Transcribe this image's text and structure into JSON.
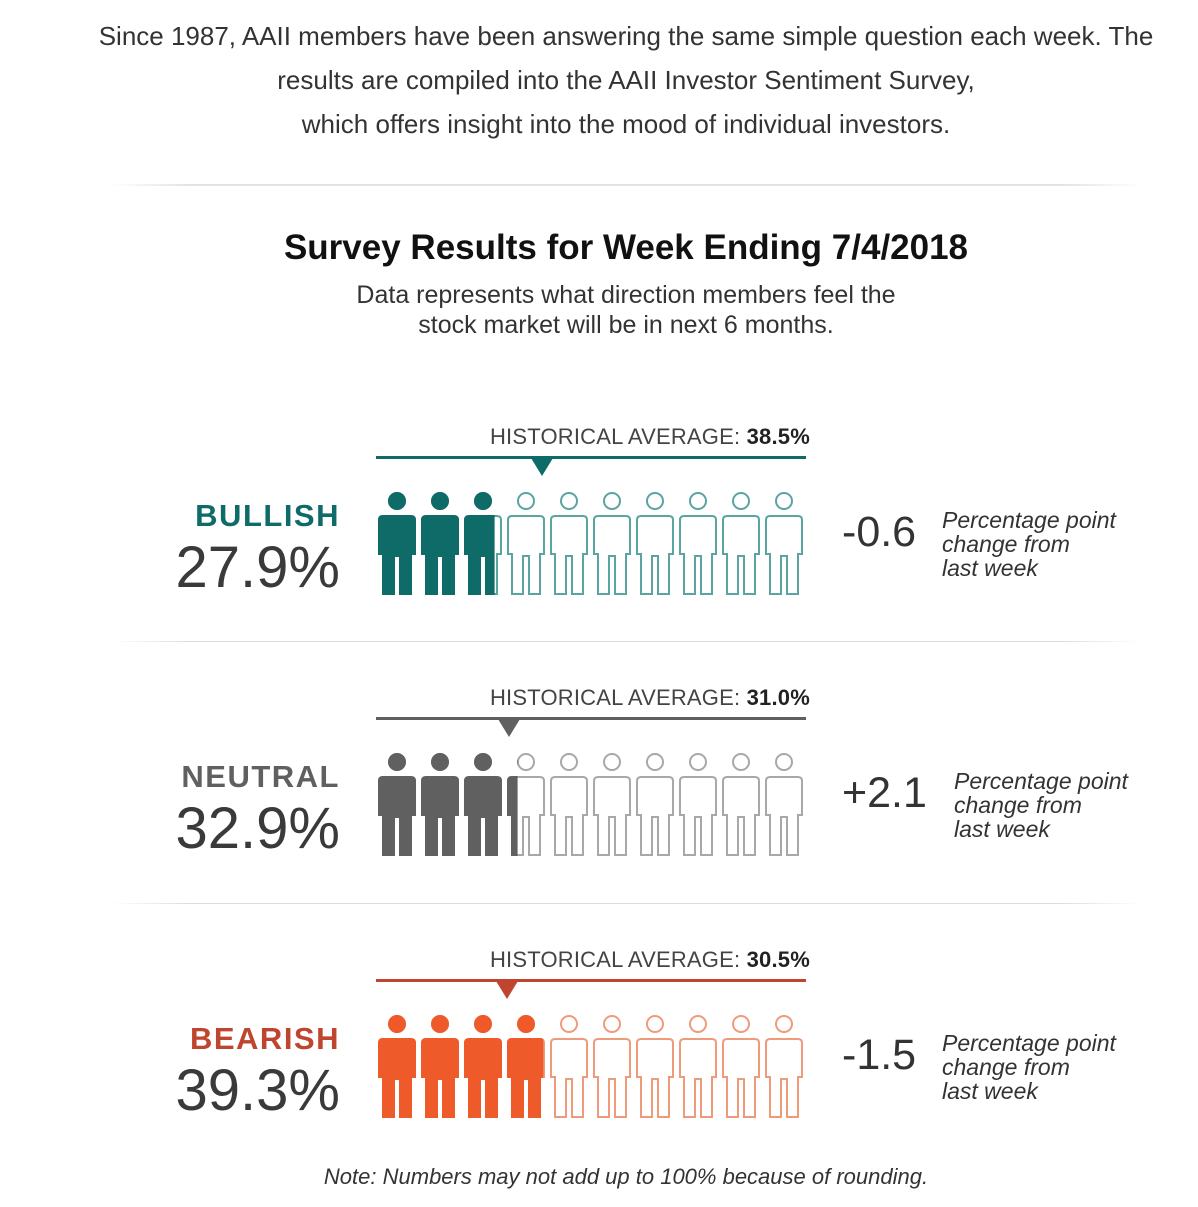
{
  "intro": {
    "line1": "Since 1987, AAII members have been answering the same simple question each week. The",
    "line2": "results are compiled into the AAII Investor Sentiment Survey,",
    "line3": "which offers insight into the mood of individual investors."
  },
  "header": {
    "title": "Survey Results for Week Ending 7/4/2018",
    "subtitle_line1": "Data represents what direction members feel the",
    "subtitle_line2": "stock market will be in next 6 months."
  },
  "hist_label_prefix": "HISTORICAL AVERAGE: ",
  "change_desc": {
    "line1": "Percentage point",
    "line2": "change from",
    "line3": "last week"
  },
  "note": "Note: Numbers may not add up to 100% because of rounding.",
  "colors": {
    "bullish": "#0e6b68",
    "bullish_outline": "#5aa4a1",
    "neutral": "#606060",
    "neutral_outline": "#a8a8a8",
    "bearish": "#ee5a2a",
    "bearish_outline": "#f09a7c",
    "bearish_label": "#c0452e"
  },
  "chart_data": {
    "type": "pictogram",
    "title": "Survey Results for Week Ending 7/4/2018",
    "icons_per_row": 10,
    "icon_value": 10,
    "series": [
      {
        "name": "BULLISH",
        "value_label": "27.9%",
        "value": 27.9,
        "historical_average_label": "38.5%",
        "historical_average": 38.5,
        "change_label": "-0.6",
        "change": -0.6
      },
      {
        "name": "NEUTRAL",
        "value_label": "32.9%",
        "value": 32.9,
        "historical_average_label": "31.0%",
        "historical_average": 31.0,
        "change_label": "+2.1",
        "change": 2.1
      },
      {
        "name": "BEARISH",
        "value_label": "39.3%",
        "value": 39.3,
        "historical_average_label": "30.5%",
        "historical_average": 30.5,
        "change_label": "-1.5",
        "change": -1.5
      }
    ]
  }
}
